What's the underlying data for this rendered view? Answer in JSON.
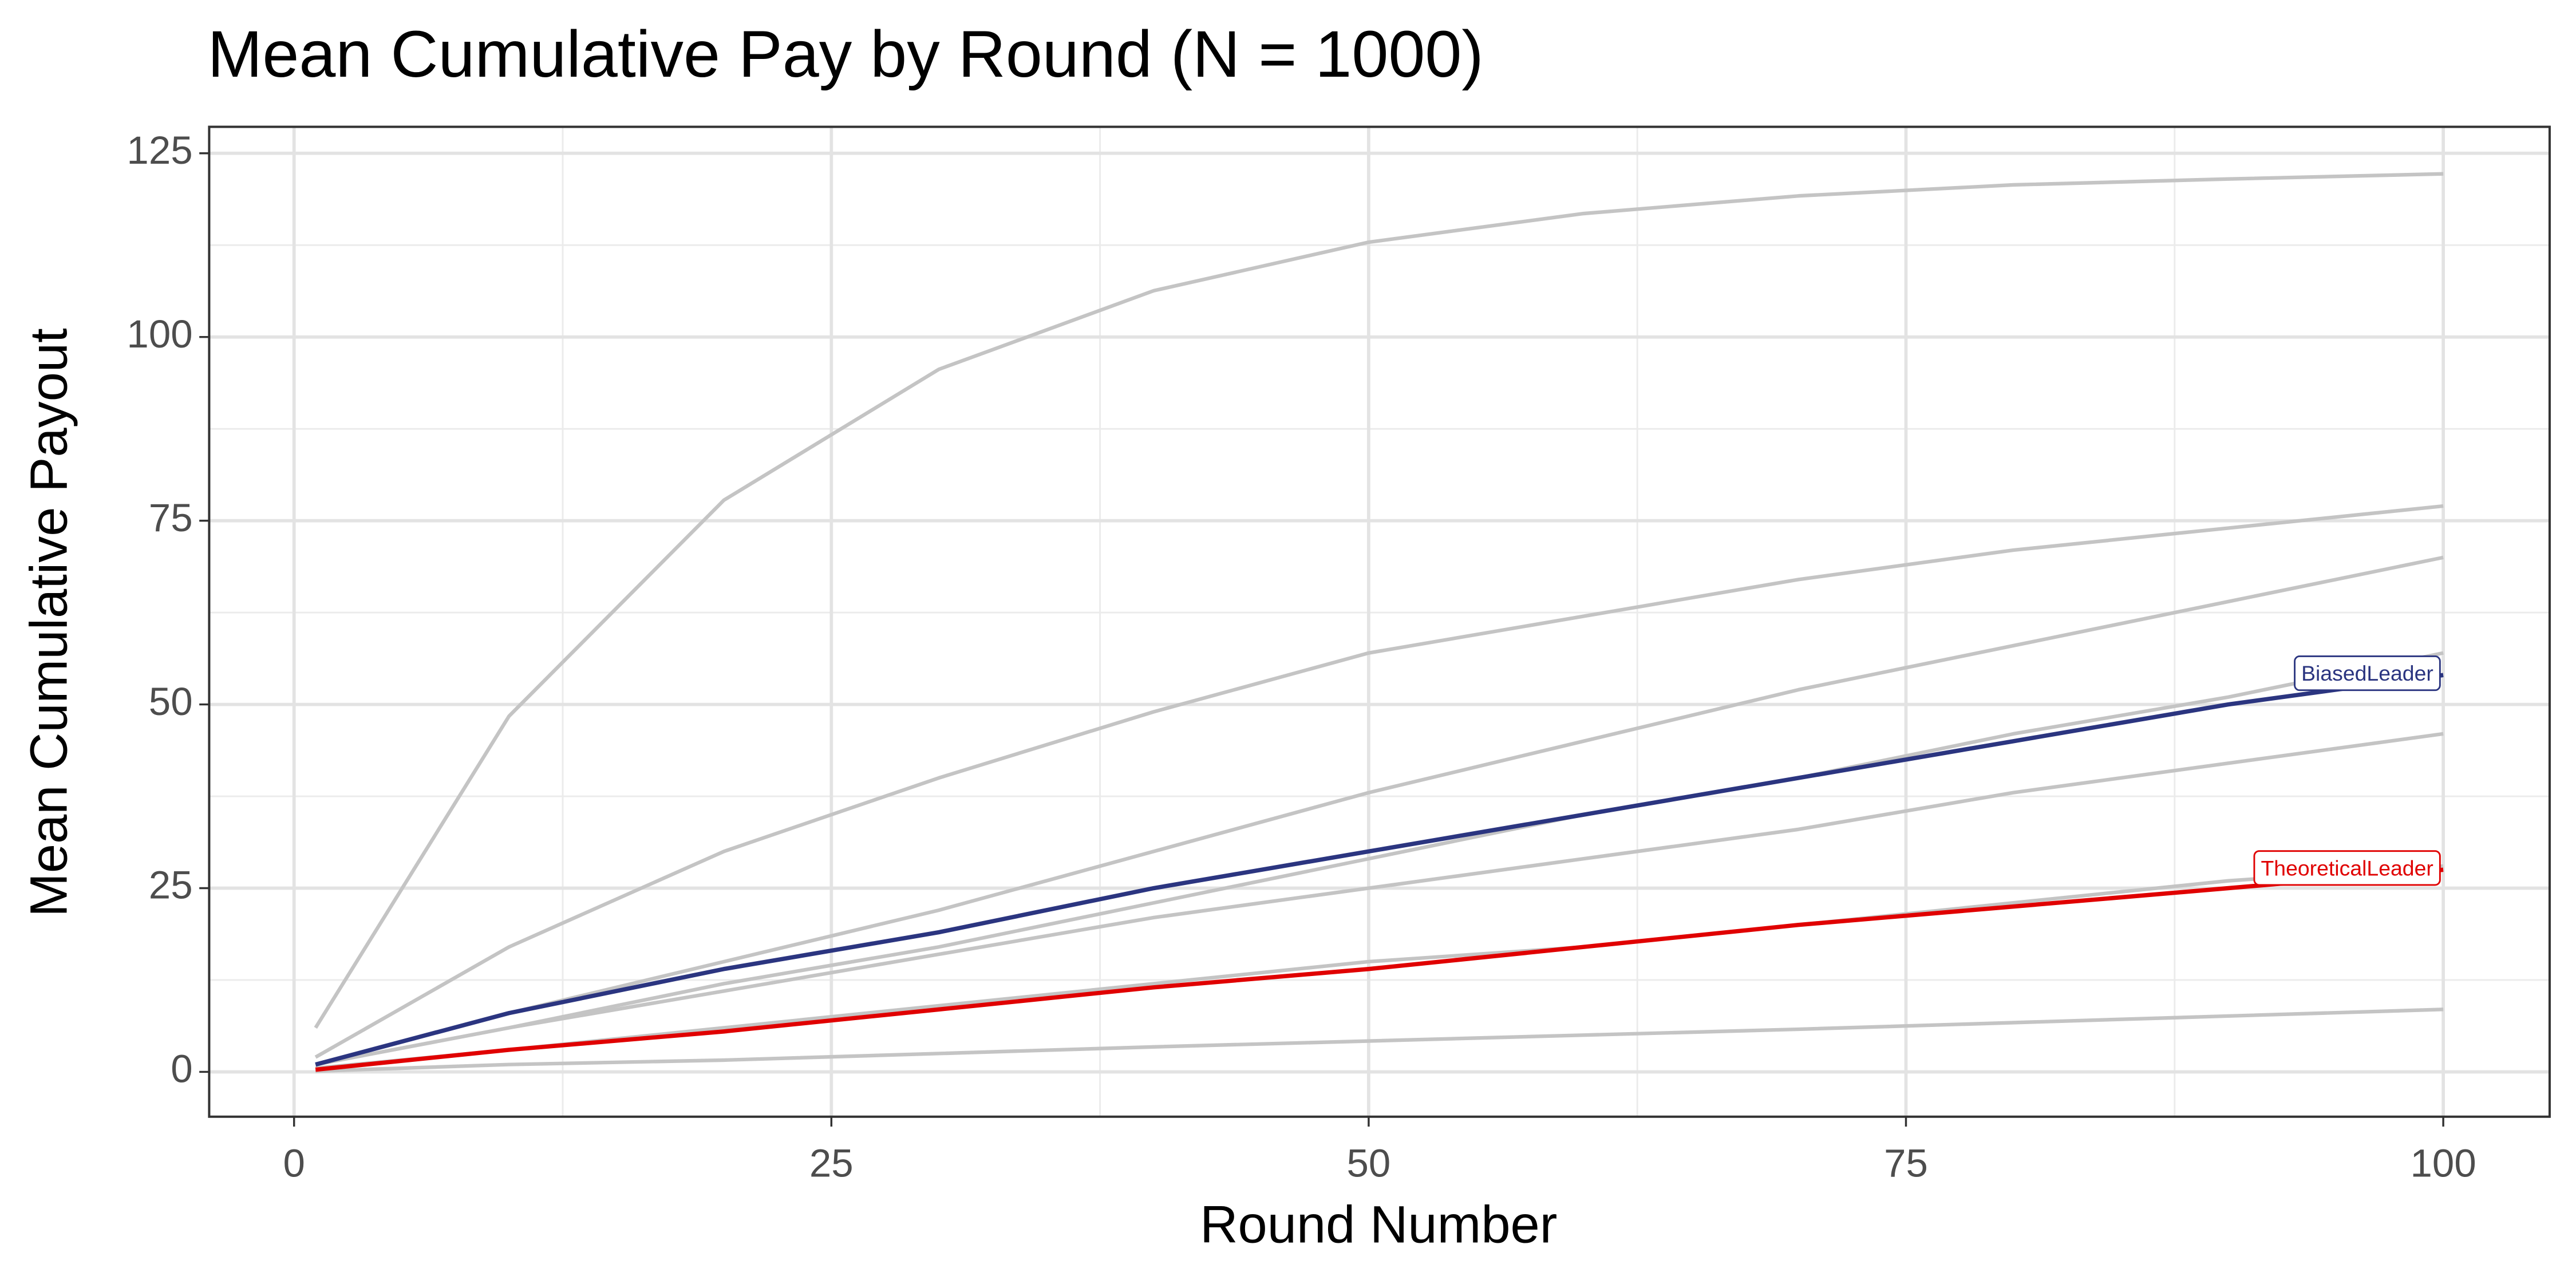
{
  "chart_data": {
    "type": "line",
    "title": "Mean Cumulative Pay by Round (N = 1000)",
    "x_label": "Round Number",
    "y_label": "Mean Cumulative Payout",
    "x": [
      1,
      10,
      20,
      30,
      40,
      50,
      60,
      70,
      80,
      90,
      100
    ],
    "series": [
      {
        "color": "#c4c4c4",
        "values": [
          6.0,
          48.4,
          77.8,
          95.6,
          106.3,
          112.9,
          116.8,
          119.2,
          120.7,
          121.5,
          122.2
        ]
      },
      {
        "color": "#c4c4c4",
        "values": [
          2,
          17,
          30,
          40,
          49,
          57,
          62,
          67,
          71,
          74,
          77
        ]
      },
      {
        "color": "#c4c4c4",
        "values": [
          1,
          8,
          15,
          22,
          30,
          38,
          45,
          52,
          58,
          64,
          70
        ]
      },
      {
        "color": "#c4c4c4",
        "values": [
          1,
          6,
          12,
          17,
          23,
          29,
          35,
          40,
          46,
          51,
          57
        ]
      },
      {
        "color": "#c4c4c4",
        "values": [
          1,
          6,
          11,
          16,
          21,
          25,
          29,
          33,
          38,
          42,
          46
        ]
      },
      {
        "color": "#c4c4c4",
        "values": [
          0.5,
          3,
          6,
          9,
          12,
          15,
          17,
          20,
          23,
          26,
          28
        ]
      },
      {
        "color": "#c4c4c4",
        "values": [
          0.1,
          1,
          1.6,
          2.5,
          3.4,
          4.2,
          5,
          5.8,
          6.7,
          7.6,
          8.5
        ]
      },
      {
        "name": "BiasedLeader",
        "color": "#2b3580",
        "values": [
          1,
          8,
          14,
          19,
          25,
          30,
          35,
          40,
          45,
          50,
          54
        ]
      },
      {
        "name": "TheoreticalLeader",
        "color": "#e00000",
        "values": [
          0.3,
          3,
          5.5,
          8.5,
          11.5,
          14,
          17,
          20,
          22.5,
          25,
          27.5
        ]
      }
    ],
    "xlim": [
      -3.95,
      104.95
    ],
    "ylim": [
      -6.1,
      128.6
    ],
    "xticks": [
      0,
      25,
      50,
      75,
      100
    ],
    "yticks": [
      0,
      25,
      50,
      75,
      100,
      125
    ],
    "grid": true
  }
}
